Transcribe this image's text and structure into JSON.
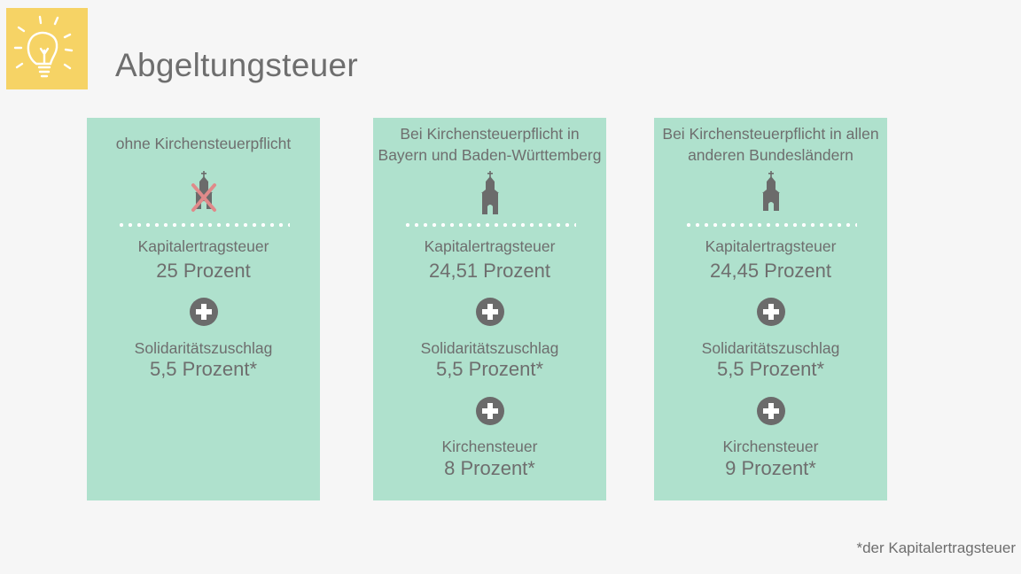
{
  "page": {
    "title": "Abgeltungsteuer",
    "footnote": "*der Kapitalertragsteuer"
  },
  "colors": {
    "background": "#f6f6f6",
    "card": "#afe1cd",
    "logo": "#f6d365",
    "icon": "#6b6b6b",
    "strike": "#e08a8a",
    "text": "#6e6e6e"
  },
  "icons": {
    "logo": "lightbulb-icon",
    "church": "church-icon",
    "plus": "plus-circle-icon"
  },
  "cards": [
    {
      "title": "ohne Kirchensteuerpflicht",
      "church_crossed": true,
      "items": [
        {
          "label": "Kapitalertragsteuer",
          "value": "25 Prozent"
        },
        {
          "label": "Solidaritätszuschlag",
          "value": "5,5 Prozent*"
        }
      ]
    },
    {
      "title": "Bei Kirchensteuerpflicht in\nBayern und Baden-Württemberg",
      "church_crossed": false,
      "items": [
        {
          "label": "Kapitalertragsteuer",
          "value": "24,51 Prozent"
        },
        {
          "label": "Solidaritätszuschlag",
          "value": "5,5 Prozent*"
        },
        {
          "label": "Kirchensteuer",
          "value": "8 Prozent*"
        }
      ]
    },
    {
      "title": "Bei Kirchensteuerpflicht in allen\nanderen Bundesländern",
      "church_crossed": false,
      "items": [
        {
          "label": "Kapitalertragsteuer",
          "value": "24,45 Prozent"
        },
        {
          "label": "Solidaritätszuschlag",
          "value": "5,5 Prozent*"
        },
        {
          "label": "Kirchensteuer",
          "value": "9 Prozent*"
        }
      ]
    }
  ]
}
